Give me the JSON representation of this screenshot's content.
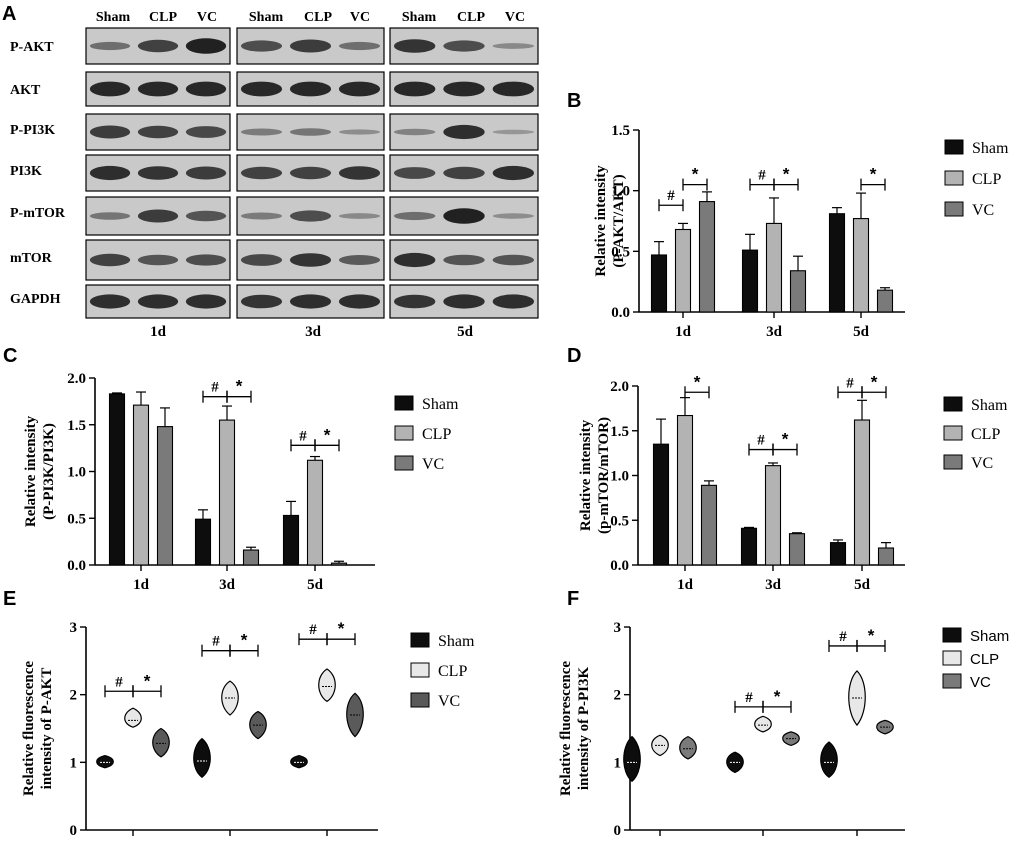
{
  "panels": {
    "A": {
      "letter": "A",
      "lanes": [
        "Sham",
        "CLP",
        "VC"
      ],
      "rows": [
        "P-AKT",
        "AKT",
        "P-PI3K",
        "PI3K",
        "P-mTOR",
        "mTOR",
        "GAPDH"
      ],
      "days": [
        "1d",
        "3d",
        "5d"
      ]
    },
    "B": {
      "letter": "B"
    },
    "C": {
      "letter": "C"
    },
    "D": {
      "letter": "D"
    },
    "E": {
      "letter": "E"
    },
    "F": {
      "letter": "F"
    }
  },
  "colors": {
    "sham": "#0d0d0d",
    "clp": "#b3b3b3",
    "vc": "#7a7a7a",
    "clp_violin": "#e8e8e8",
    "vc_violin_e": "#5a5a5a"
  },
  "chart_data": [
    {
      "id": "B",
      "type": "bar",
      "categories": [
        "1d",
        "3d",
        "5d"
      ],
      "ylabel_lines": [
        "Relative intensity",
        "(P-AKT/AKT)"
      ],
      "ylim": [
        0,
        1.5
      ],
      "yticks": [
        "0.0",
        "0.5",
        "1.0",
        "1.5"
      ],
      "legend": [
        "Sham",
        "CLP",
        "VC"
      ],
      "legend_placement": "right",
      "series": [
        {
          "name": "Sham",
          "values": [
            0.47,
            0.51,
            0.81
          ],
          "errors": [
            0.11,
            0.13,
            0.05
          ]
        },
        {
          "name": "CLP",
          "values": [
            0.68,
            0.73,
            0.77
          ],
          "errors": [
            0.05,
            0.21,
            0.21
          ]
        },
        {
          "name": "VC",
          "values": [
            0.91,
            0.34,
            0.18
          ],
          "errors": [
            0.08,
            0.12,
            0.02
          ]
        }
      ],
      "annotations": [
        {
          "group": 0,
          "between": [
            0,
            1
          ],
          "label": "#",
          "level": 0.88
        },
        {
          "group": 0,
          "between": [
            1,
            2
          ],
          "label": "*",
          "level": 1.05
        },
        {
          "group": 1,
          "between": [
            0,
            1
          ],
          "label": "#",
          "level": 1.05
        },
        {
          "group": 1,
          "between": [
            1,
            2
          ],
          "label": "*",
          "level": 1.05
        },
        {
          "group": 2,
          "between": [
            1,
            2
          ],
          "label": "*",
          "level": 1.05
        }
      ]
    },
    {
      "id": "C",
      "type": "bar",
      "categories": [
        "1d",
        "3d",
        "5d"
      ],
      "ylabel_lines": [
        "Relative intensity",
        "(P-PI3K/PI3K)"
      ],
      "ylim": [
        0,
        2.0
      ],
      "yticks": [
        "0.0",
        "0.5",
        "1.0",
        "1.5",
        "2.0"
      ],
      "legend": [
        "Sham",
        "CLP",
        "VC"
      ],
      "legend_placement": "right",
      "series": [
        {
          "name": "Sham",
          "values": [
            1.83,
            0.49,
            0.53
          ],
          "errors": [
            0.01,
            0.1,
            0.15
          ]
        },
        {
          "name": "CLP",
          "values": [
            1.71,
            1.55,
            1.12
          ],
          "errors": [
            0.14,
            0.15,
            0.04
          ]
        },
        {
          "name": "VC",
          "values": [
            1.48,
            0.16,
            0.02
          ],
          "errors": [
            0.2,
            0.03,
            0.02
          ]
        }
      ],
      "annotations": [
        {
          "group": 1,
          "between": [
            0,
            1
          ],
          "label": "#",
          "level": 1.8
        },
        {
          "group": 1,
          "between": [
            1,
            2
          ],
          "label": "*",
          "level": 1.8
        },
        {
          "group": 2,
          "between": [
            0,
            1
          ],
          "label": "#",
          "level": 1.28
        },
        {
          "group": 2,
          "between": [
            1,
            2
          ],
          "label": "*",
          "level": 1.28
        }
      ]
    },
    {
      "id": "D",
      "type": "bar",
      "categories": [
        "1d",
        "3d",
        "5d"
      ],
      "ylabel_lines": [
        "Relative intensity",
        "(p-mTOR/mTOR)"
      ],
      "ylim": [
        0,
        2.0
      ],
      "yticks": [
        "0.0",
        "0.5",
        "1.0",
        "1.5",
        "2.0"
      ],
      "legend": [
        "Sham",
        "CLP",
        "VC"
      ],
      "legend_placement": "right",
      "series": [
        {
          "name": "Sham",
          "values": [
            1.35,
            0.41,
            0.25
          ],
          "errors": [
            0.28,
            0.01,
            0.03
          ]
        },
        {
          "name": "CLP",
          "values": [
            1.67,
            1.11,
            1.62
          ],
          "errors": [
            0.2,
            0.03,
            0.22
          ]
        },
        {
          "name": "VC",
          "values": [
            0.89,
            0.35,
            0.19
          ],
          "errors": [
            0.05,
            0.01,
            0.06
          ]
        }
      ],
      "annotations": [
        {
          "group": 0,
          "between": [
            1,
            2
          ],
          "label": "*",
          "level": 1.93
        },
        {
          "group": 1,
          "between": [
            0,
            1
          ],
          "label": "#",
          "level": 1.29
        },
        {
          "group": 1,
          "between": [
            1,
            2
          ],
          "label": "*",
          "level": 1.29
        },
        {
          "group": 2,
          "between": [
            0,
            1
          ],
          "label": "#",
          "level": 1.93
        },
        {
          "group": 2,
          "between": [
            1,
            2
          ],
          "label": "*",
          "level": 1.93
        }
      ]
    },
    {
      "id": "E",
      "type": "violin",
      "categories": [
        "1d",
        "3d",
        "5d"
      ],
      "ylabel_lines": [
        "Relative fluorescence",
        "intensity of P-AKT"
      ],
      "ylim": [
        0,
        3
      ],
      "yticks": [
        "0",
        "1",
        "2",
        "3"
      ],
      "legend": [
        "Sham",
        "CLP",
        "VC"
      ],
      "legend_placement": "right",
      "series": [
        {
          "name": "Sham",
          "values": [
            [
              0.92,
              1.0,
              1.1
            ],
            [
              0.78,
              1.02,
              1.35
            ],
            [
              0.92,
              1.0,
              1.1
            ]
          ]
        },
        {
          "name": "CLP",
          "values": [
            [
              1.52,
              1.62,
              1.8
            ],
            [
              1.7,
              1.95,
              2.2
            ],
            [
              1.9,
              2.12,
              2.38
            ]
          ]
        },
        {
          "name": "VC",
          "values": [
            [
              1.08,
              1.28,
              1.5
            ],
            [
              1.35,
              1.55,
              1.75
            ],
            [
              1.38,
              1.7,
              2.02
            ]
          ]
        }
      ],
      "annotations": [
        {
          "group": 0,
          "between": [
            0,
            1
          ],
          "label": "#",
          "level": 2.05
        },
        {
          "group": 0,
          "between": [
            1,
            2
          ],
          "label": "*",
          "level": 2.05
        },
        {
          "group": 1,
          "between": [
            0,
            1
          ],
          "label": "#",
          "level": 2.65
        },
        {
          "group": 1,
          "between": [
            1,
            2
          ],
          "label": "*",
          "level": 2.65
        },
        {
          "group": 2,
          "between": [
            0,
            1
          ],
          "label": "#",
          "level": 2.82
        },
        {
          "group": 2,
          "between": [
            1,
            2
          ],
          "label": "*",
          "level": 2.82
        }
      ]
    },
    {
      "id": "F",
      "type": "violin",
      "categories": [
        "1d",
        "3d",
        "5d"
      ],
      "ylabel_lines": [
        "Relative fluorescence",
        "intensity of P-PI3K"
      ],
      "ylim": [
        0,
        3
      ],
      "yticks": [
        "0",
        "1",
        "2",
        "3"
      ],
      "legend": [
        "Sham",
        "CLP",
        "VC"
      ],
      "legend_placement": "right",
      "series": [
        {
          "name": "Sham",
          "values": [
            [
              0.72,
              1.0,
              1.38
            ],
            [
              0.85,
              1.0,
              1.15
            ],
            [
              0.78,
              1.0,
              1.3
            ]
          ]
        },
        {
          "name": "CLP",
          "values": [
            [
              1.1,
              1.25,
              1.4
            ],
            [
              1.45,
              1.55,
              1.68
            ],
            [
              1.55,
              1.95,
              2.35
            ]
          ]
        },
        {
          "name": "VC",
          "values": [
            [
              1.05,
              1.2,
              1.38
            ],
            [
              1.25,
              1.35,
              1.45
            ],
            [
              1.42,
              1.52,
              1.62
            ]
          ]
        }
      ],
      "annotations": [
        {
          "group": 1,
          "between": [
            0,
            1
          ],
          "label": "#",
          "level": 1.82
        },
        {
          "group": 1,
          "between": [
            1,
            2
          ],
          "label": "*",
          "level": 1.82
        },
        {
          "group": 2,
          "between": [
            0,
            1
          ],
          "label": "#",
          "level": 2.72
        },
        {
          "group": 2,
          "between": [
            1,
            2
          ],
          "label": "*",
          "level": 2.72
        }
      ]
    }
  ]
}
